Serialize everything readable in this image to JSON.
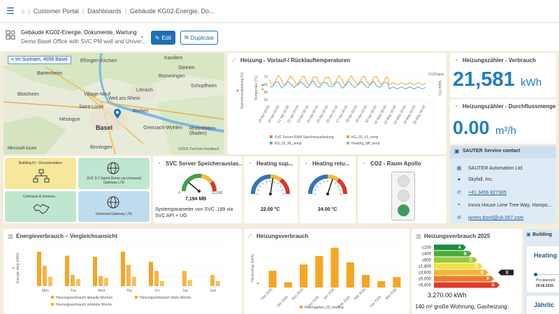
{
  "topbar": {
    "breadcrumbs": [
      "Customer Portal",
      "Dashboards",
      "Gebäude KG02-Energie, Do..."
    ]
  },
  "header": {
    "title": "Gebäude KG02-Energie, Dokumente, Wartung",
    "subtitle": "Demo Basel Office with SVC PM wall and Univer...",
    "edit_label": "Edit",
    "duplicate_label": "Duplicate"
  },
  "map": {
    "location_label": "Im Surinam, 4058 Basel",
    "places": [
      "Bartenheim",
      "Efringen-Kirchen",
      "Village-Neuf",
      "Saint-Louis",
      "Weil am Rhein",
      "Lörrach",
      "Basel",
      "Riehen",
      "Grenzach-Wyhlen",
      "Rheinfelden (Baden)",
      "Binningen",
      "Hésingue",
      "Blotzheim",
      "Kandern",
      "Rümmingen",
      "Steinen",
      "Schopfheim"
    ],
    "provider": "Microsoft Azure",
    "copyright": "©2025 TomTom  Feedback"
  },
  "temp_chart": {
    "title": "Heizung - Vorlauf-/ Rücklauftemperaturen",
    "y_left_label": "Speicherauslastung (%)",
    "y_mid_label": "Temperatur (°C)",
    "y_right_label": "Value (%)",
    "y_ticks": [
      "72",
      "56",
      "40",
      "24"
    ],
    "right_ticks": [
      "CO2Value",
      "-",
      "-",
      "-",
      "-"
    ],
    "x_ticks": [
      "19 Apr 00:00",
      "20 Apr 00:00",
      "21 Apr 00:00",
      "22 Apr 00:00",
      "23 Apr 00:00",
      "24 Apr 00:00",
      "25 Apr 00:00",
      "26 Apr 00:00",
      "27 Apr 00:00",
      "28 Apr 00:00",
      "29 Apr 00:00",
      "30 Apr 00:00",
      "01 May 00:00",
      "02 May 00:00",
      "03 May 00:00",
      "04 May 00:00",
      "05 May 00:00"
    ],
    "legend": [
      "SVC Server-RAM Speicherauslastung",
      "KG_02_VL_temp",
      "KG_02_RL_temp",
      "Heating_diff_temp"
    ],
    "colors": {
      "vl": "#f5a623",
      "rl": "#5aa9d6",
      "ram": "#e8803a"
    }
  },
  "consumption": {
    "title": "Heizungszähler - Verbrauch",
    "value": "21,581",
    "unit": "kWh"
  },
  "flow": {
    "title": "Heizungszähler - Durchflussmenge",
    "value": "0.00",
    "unit": "m³/h"
  },
  "tiles": {
    "t1": "Building KI - Documentation",
    "t2": "SVC 9.2 Sprint Demo via Universal Gateway LTE",
    "t3": "Contracts & Invoices",
    "t4": "Universal Gateway LTE"
  },
  "svc_server": {
    "title": "SVC Server Speicherauslas...",
    "gauge_min": "0",
    "gauge_max": "32,000",
    "gauge_value": "7,194 MB",
    "gauge_fraction": 0.22,
    "note": "Systemparameter von SVC .189 via SVC API + UG"
  },
  "heating_supply": {
    "title": "Heating sup...",
    "value": "22.00 °C",
    "fraction": 0.55
  },
  "heating_return": {
    "title": "Heating retu...",
    "value": "24.00 °C",
    "fraction": 0.6
  },
  "co2": {
    "title": "CO2 - Raum Apollo"
  },
  "contact": {
    "title": "SAUTER Service contact",
    "company": "SAUTER Automation Ltd.",
    "person": "Skyfall, Inc.",
    "phone": "+41 3456 827365",
    "address": "Inova House Lime Tree Way, Hamps...",
    "email": "james.bond@uk.007.com"
  },
  "energy_chart": {
    "title": "Energieverbrauch – Vergleichsansicht",
    "ylabel": "Energie daily (kWh)",
    "legend": [
      "Heizungsverbrauch aktuelle Wochen",
      "Heizungsverbrauch letzte Woche",
      "Heizungsverbrauch vorletzte Woche"
    ],
    "color": "#f5a623"
  },
  "chart_data": [
    {
      "type": "bar",
      "title": "Energieverbrauch – Vergleichsansicht",
      "categories": [
        "Mon",
        "Tue",
        "Wed",
        "Thu",
        "Fri",
        "Sat",
        "Sun"
      ],
      "series": [
        {
          "name": "Heizungsverbrauch aktuelle Wochen",
          "values": [
            68,
            60,
            58,
            68,
            48,
            0,
            0
          ]
        },
        {
          "name": "Heizungsverbrauch letzte Woche",
          "values": [
            40,
            22,
            20,
            42,
            30,
            30,
            22
          ]
        },
        {
          "name": "Heizungsverbrauch vorletzte Woche",
          "values": [
            18,
            14,
            16,
            18,
            10,
            12,
            10
          ]
        }
      ],
      "ylabel": "Energie daily (kWh)"
    },
    {
      "type": "bar",
      "title": "Heizungsverbrauch",
      "categories": [
        "Sep 2025",
        "Okt 2025",
        "Nov 2025",
        "Dez 2025",
        "Jan 2026",
        "Feb 2026",
        "Mär 2026",
        "Apr 2026",
        "Mai 2026"
      ],
      "series": [
        {
          "name": "Kirschgarten_02_heating",
          "values": [
            16,
            5,
            22,
            30,
            38,
            24,
            12,
            6,
            10
          ]
        }
      ],
      "ylabel": "Heizenergy (kWh)"
    }
  ],
  "heating_usage": {
    "title": "Heizungsverbrauch",
    "ylabel": "Heizenergy (kWh)",
    "legend": "Kirschgarten_02_heating"
  },
  "heating_2025": {
    "title": "Heizungsverbrauch 2025",
    "classes": [
      "≤200",
      "≤400",
      "≤600",
      "≤1,800",
      "≤3,600",
      "≤5,000",
      ">5,000"
    ],
    "letters": [
      "A",
      "B",
      "C",
      "D",
      "E",
      "F",
      "G"
    ],
    "class_colors": [
      "#1a8f3a",
      "#4daa3c",
      "#9bc93d",
      "#f1e23b",
      "#f5b335",
      "#ee7a2c",
      "#e03a2a"
    ],
    "active_letter": "E",
    "value": "3,270.00 kWh",
    "note": "140 m² große Wohnung, Gasheizung"
  },
  "building": {
    "title": "Building",
    "item1_title": "Heating",
    "item1_status": "Pre-planned",
    "item1_date": "09.06.2026",
    "item2_title": "Jährlic"
  }
}
